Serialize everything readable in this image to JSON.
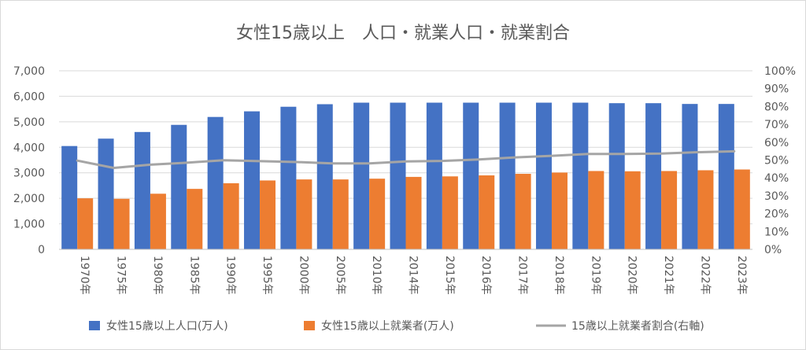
{
  "chart_data": {
    "type": "bar",
    "title": "女性15歳以上　人口・就業人口・就業割合",
    "categories": [
      "1970年",
      "1975年",
      "1980年",
      "1985年",
      "1990年",
      "1995年",
      "2000年",
      "2005年",
      "2010年",
      "2014年",
      "2015年",
      "2016年",
      "2017年",
      "2018年",
      "2019年",
      "2020年",
      "2021年",
      "2022年",
      "2023年"
    ],
    "series": [
      {
        "name": "女性15歳以上人口(万人)",
        "type": "bar",
        "axis": "left",
        "color": "#4472c4",
        "values": [
          4050,
          4340,
          4600,
          4880,
          5190,
          5410,
          5590,
          5690,
          5750,
          5750,
          5750,
          5750,
          5750,
          5750,
          5750,
          5730,
          5730,
          5700,
          5700
        ]
      },
      {
        "name": "女性15歳以上就業者(万人)",
        "type": "bar",
        "axis": "left",
        "color": "#ed7d31",
        "values": [
          2000,
          1980,
          2180,
          2370,
          2590,
          2700,
          2740,
          2740,
          2770,
          2840,
          2860,
          2900,
          2960,
          3010,
          3070,
          3060,
          3070,
          3100,
          3130
        ]
      },
      {
        "name": "15歳以上就業者割合(右軸)",
        "type": "line",
        "axis": "right",
        "color": "#a5a5a5",
        "values": [
          0.497,
          0.456,
          0.474,
          0.485,
          0.499,
          0.494,
          0.489,
          0.481,
          0.481,
          0.492,
          0.495,
          0.503,
          0.515,
          0.524,
          0.534,
          0.534,
          0.536,
          0.544,
          0.549
        ]
      }
    ],
    "y_left": {
      "min": 0,
      "max": 7000,
      "step": 1000,
      "tick_labels": [
        "0",
        "1,000",
        "2,000",
        "3,000",
        "4,000",
        "5,000",
        "6,000",
        "7,000"
      ]
    },
    "y_right": {
      "min": 0,
      "max": 1,
      "step": 0.1,
      "tick_labels": [
        "0%",
        "10%",
        "20%",
        "30%",
        "40%",
        "50%",
        "60%",
        "70%",
        "80%",
        "90%",
        "100%"
      ]
    },
    "grid": true,
    "legend_position": "bottom"
  }
}
